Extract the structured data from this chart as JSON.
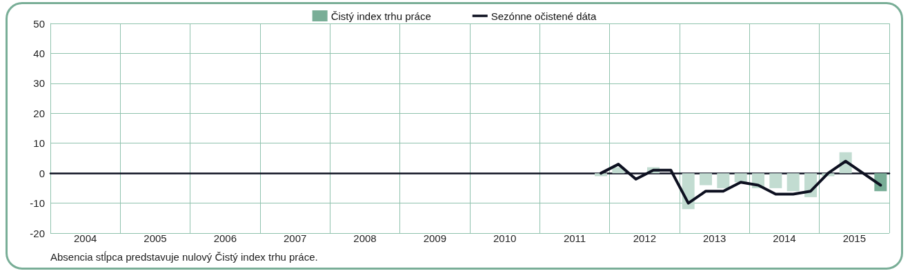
{
  "chart_data": {
    "type": "bar",
    "x": [
      2011.875,
      2012.125,
      2012.375,
      2012.625,
      2012.875,
      2013.125,
      2013.375,
      2013.625,
      2013.875,
      2014.125,
      2014.375,
      2014.625,
      2014.875,
      2015.125,
      2015.375,
      2015.625,
      2015.875
    ],
    "series": [
      {
        "name": "Čistý index trhu práce",
        "color": "#79ae97",
        "colors": [
          "#c2dcd1",
          "#c2dcd1",
          "#c2dcd1",
          "#c2dcd1",
          "#c2dcd1",
          "#c2dcd1",
          "#c2dcd1",
          "#c2dcd1",
          "#c2dcd1",
          "#c2dcd1",
          "#c2dcd1",
          "#c2dcd1",
          "#c2dcd1",
          "#c2dcd1",
          "#c2dcd1",
          "#c2dcd1",
          "#79ae97"
        ],
        "values": [
          -1,
          2,
          null,
          2,
          null,
          -12,
          -4,
          -5,
          -3,
          -5,
          -5,
          -6,
          -8,
          -1,
          7,
          null,
          -6
        ]
      },
      {
        "name": "Sezónne očistené dáta",
        "type": "line",
        "color": "#0d1020",
        "values": [
          0,
          3,
          -2,
          1,
          1,
          -10,
          -6,
          -6,
          -3,
          -4,
          -7,
          -7,
          -6,
          0,
          4,
          0,
          -4
        ]
      }
    ],
    "xlim": [
      2004,
      2016
    ],
    "xticks": [
      {
        "value": 2004,
        "label": null
      },
      {
        "value": 2004.5,
        "label": "2004"
      },
      {
        "value": 2005,
        "label": null
      },
      {
        "value": 2005.5,
        "label": "2005"
      },
      {
        "value": 2006,
        "label": null
      },
      {
        "value": 2006.5,
        "label": "2006"
      },
      {
        "value": 2007,
        "label": null
      },
      {
        "value": 2007.5,
        "label": "2007"
      },
      {
        "value": 2008,
        "label": null
      },
      {
        "value": 2008.5,
        "label": "2008"
      },
      {
        "value": 2009,
        "label": null
      },
      {
        "value": 2009.5,
        "label": "2009"
      },
      {
        "value": 2010,
        "label": null
      },
      {
        "value": 2010.5,
        "label": "2010"
      },
      {
        "value": 2011,
        "label": null
      },
      {
        "value": 2011.5,
        "label": "2011"
      },
      {
        "value": 2012,
        "label": null
      },
      {
        "value": 2012.5,
        "label": "2012"
      },
      {
        "value": 2013,
        "label": null
      },
      {
        "value": 2013.5,
        "label": "2013"
      },
      {
        "value": 2014,
        "label": null
      },
      {
        "value": 2014.5,
        "label": "2014"
      },
      {
        "value": 2015,
        "label": null
      },
      {
        "value": 2015.5,
        "label": "2015"
      },
      {
        "value": 2016,
        "label": null
      }
    ],
    "ylim": [
      -20,
      50
    ],
    "yticks": [
      -20,
      -10,
      0,
      10,
      20,
      30,
      40,
      50
    ],
    "grid": true,
    "legend": "top",
    "marker": "none",
    "line_style": "solid",
    "annotations": [
      "Absencia stĺpca predstavuje nulový Čistý index trhu práce."
    ]
  }
}
